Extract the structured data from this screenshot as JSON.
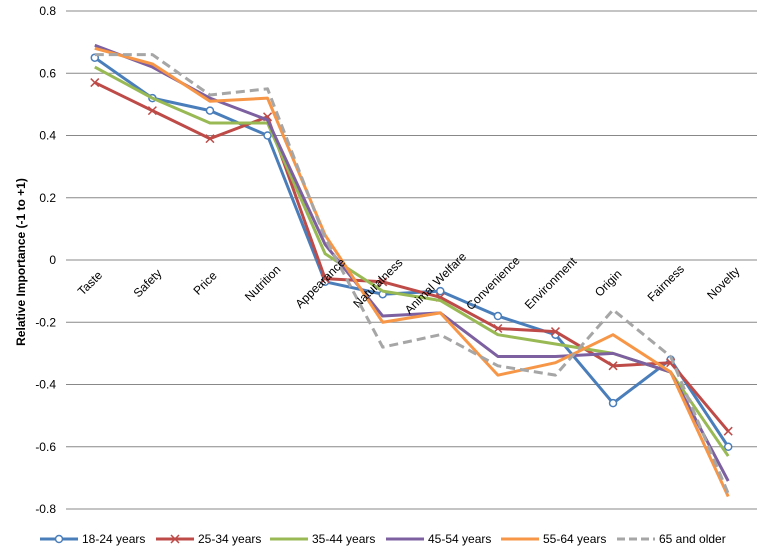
{
  "chart_data": {
    "type": "line",
    "title": "",
    "xlabel": "",
    "ylabel": "Relative Importance (-1 to +1)",
    "ylim": [
      -0.8,
      0.8
    ],
    "yticks": [
      "0.8",
      "0.6",
      "0.4",
      "0.2",
      "0",
      "-0.2",
      "-0.4",
      "-0.6",
      "-0.8"
    ],
    "grid": "horizontal",
    "legend_position": "bottom",
    "categories": [
      "Taste",
      "Safety",
      "Price",
      "Nutrition",
      "Appearance",
      "Naturalness",
      "Animal Welfare",
      "Convenience",
      "Environment",
      "Origin",
      "Fairness",
      "Novelty"
    ],
    "series": [
      {
        "name": "18-24 years",
        "color": "#4a7ebb",
        "marker": "circle",
        "dash": "solid",
        "values": [
          0.65,
          0.52,
          0.48,
          0.4,
          -0.07,
          -0.11,
          -0.1,
          -0.18,
          -0.24,
          -0.46,
          -0.32,
          -0.6
        ]
      },
      {
        "name": "25-34 years",
        "color": "#be4b48",
        "marker": "x",
        "dash": "solid",
        "values": [
          0.57,
          0.48,
          0.39,
          0.46,
          -0.06,
          -0.07,
          -0.12,
          -0.22,
          -0.23,
          -0.34,
          -0.33,
          -0.55
        ]
      },
      {
        "name": "35-44 years",
        "color": "#98b954",
        "marker": "none",
        "dash": "solid",
        "values": [
          0.62,
          0.52,
          0.44,
          0.44,
          0.02,
          -0.1,
          -0.13,
          -0.24,
          -0.27,
          -0.3,
          -0.36,
          -0.63
        ]
      },
      {
        "name": "45-54 years",
        "color": "#7d60a0",
        "marker": "none",
        "dash": "solid",
        "values": [
          0.69,
          0.62,
          0.52,
          0.45,
          0.05,
          -0.18,
          -0.17,
          -0.31,
          -0.31,
          -0.3,
          -0.36,
          -0.71
        ]
      },
      {
        "name": "55-64 years",
        "color": "#f79646",
        "marker": "none",
        "dash": "solid",
        "values": [
          0.68,
          0.63,
          0.51,
          0.52,
          0.08,
          -0.2,
          -0.17,
          -0.37,
          -0.33,
          -0.24,
          -0.36,
          -0.76
        ]
      },
      {
        "name": "65 and older",
        "color": "#a6a6a6",
        "marker": "none",
        "dash": "dashed",
        "values": [
          0.66,
          0.66,
          0.53,
          0.55,
          0.07,
          -0.28,
          -0.24,
          -0.34,
          -0.37,
          -0.16,
          -0.31,
          -0.75
        ]
      }
    ]
  }
}
